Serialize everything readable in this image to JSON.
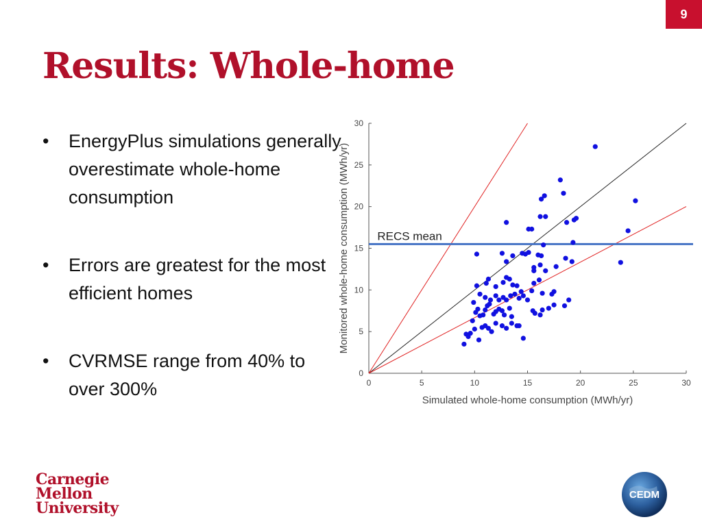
{
  "slide": {
    "number": "9",
    "title": "Results: Whole-home"
  },
  "bullets": [
    "EnergyPlus simulations generally overestimate whole-home consumption",
    "Errors are greatest for the most  efficient homes",
    "CVRMSE range from 40% to over 300%"
  ],
  "chart_data": {
    "type": "scatter",
    "xlabel": "Simulated whole-home consumption (MWh/yr)",
    "ylabel": "Monitored whole-home consumption (MWh/yr)",
    "xlim": [
      0,
      30
    ],
    "ylim": [
      0,
      30
    ],
    "xticks": [
      0,
      5,
      10,
      15,
      20,
      25,
      30
    ],
    "yticks": [
      0,
      5,
      10,
      15,
      20,
      25,
      30
    ],
    "grid": false,
    "reference_lines": [
      {
        "slope": 1,
        "color": "#222222"
      },
      {
        "slope": 2,
        "color": "#e02020"
      },
      {
        "slope": 0.667,
        "color": "#e02020"
      }
    ],
    "annotation": {
      "label": "RECS mean",
      "y": 15.5,
      "color": "#4472c4"
    },
    "point_color": "#1010e0",
    "points": [
      [
        9.0,
        3.5
      ],
      [
        9.2,
        4.7
      ],
      [
        9.4,
        4.4
      ],
      [
        9.6,
        4.8
      ],
      [
        10.0,
        5.3
      ],
      [
        10.4,
        4.0
      ],
      [
        10.7,
        5.5
      ],
      [
        11.0,
        5.7
      ],
      [
        11.3,
        5.4
      ],
      [
        11.6,
        5.0
      ],
      [
        12.0,
        6.0
      ],
      [
        12.6,
        5.7
      ],
      [
        13.0,
        5.4
      ],
      [
        13.5,
        6.0
      ],
      [
        14.0,
        5.7
      ],
      [
        14.2,
        5.7
      ],
      [
        14.6,
        4.2
      ],
      [
        9.8,
        6.3
      ],
      [
        10.1,
        7.3
      ],
      [
        10.3,
        7.7
      ],
      [
        10.5,
        6.9
      ],
      [
        10.8,
        7.0
      ],
      [
        11.0,
        7.6
      ],
      [
        11.2,
        8.1
      ],
      [
        11.4,
        8.3
      ],
      [
        11.8,
        7.1
      ],
      [
        12.0,
        7.4
      ],
      [
        12.3,
        7.7
      ],
      [
        12.6,
        7.5
      ],
      [
        12.8,
        7.0
      ],
      [
        13.3,
        7.8
      ],
      [
        13.5,
        6.8
      ],
      [
        9.9,
        8.5
      ],
      [
        10.5,
        9.5
      ],
      [
        11.0,
        9.1
      ],
      [
        11.5,
        8.8
      ],
      [
        12.0,
        9.3
      ],
      [
        12.3,
        8.8
      ],
      [
        12.7,
        9.1
      ],
      [
        13.0,
        8.8
      ],
      [
        13.4,
        9.3
      ],
      [
        13.8,
        9.5
      ],
      [
        14.2,
        9.0
      ],
      [
        14.6,
        9.3
      ],
      [
        15.0,
        8.8
      ],
      [
        15.5,
        7.5
      ],
      [
        15.7,
        7.2
      ],
      [
        16.2,
        7.0
      ],
      [
        16.4,
        7.6
      ],
      [
        17.0,
        7.8
      ],
      [
        17.5,
        8.2
      ],
      [
        18.5,
        8.1
      ],
      [
        18.9,
        8.8
      ],
      [
        10.2,
        10.5
      ],
      [
        11.1,
        10.8
      ],
      [
        11.3,
        11.3
      ],
      [
        12.0,
        10.4
      ],
      [
        12.7,
        10.9
      ],
      [
        13.0,
        11.5
      ],
      [
        13.3,
        11.3
      ],
      [
        13.6,
        10.6
      ],
      [
        14.0,
        10.5
      ],
      [
        14.4,
        9.8
      ],
      [
        15.4,
        9.9
      ],
      [
        15.6,
        10.8
      ],
      [
        16.4,
        9.6
      ],
      [
        17.3,
        9.5
      ],
      [
        17.5,
        9.8
      ],
      [
        16.1,
        11.2
      ],
      [
        16.7,
        12.3
      ],
      [
        15.6,
        12.7
      ],
      [
        16.2,
        13.0
      ],
      [
        16.3,
        14.1
      ],
      [
        17.7,
        12.8
      ],
      [
        18.6,
        13.8
      ],
      [
        19.2,
        13.4
      ],
      [
        10.2,
        14.3
      ],
      [
        12.6,
        14.4
      ],
      [
        13.0,
        13.4
      ],
      [
        13.6,
        14.1
      ],
      [
        14.5,
        14.4
      ],
      [
        14.8,
        14.3
      ],
      [
        15.6,
        12.3
      ],
      [
        16.0,
        14.2
      ],
      [
        15.1,
        17.3
      ],
      [
        15.4,
        17.3
      ],
      [
        16.5,
        15.4
      ],
      [
        19.3,
        15.7
      ],
      [
        13.0,
        18.1
      ],
      [
        15.1,
        14.5
      ],
      [
        16.2,
        18.8
      ],
      [
        16.7,
        18.8
      ],
      [
        19.4,
        18.4
      ],
      [
        19.6,
        18.6
      ],
      [
        18.7,
        18.1
      ],
      [
        16.3,
        20.9
      ],
      [
        16.6,
        21.3
      ],
      [
        18.4,
        21.6
      ],
      [
        18.1,
        23.2
      ],
      [
        21.4,
        27.2
      ],
      [
        23.8,
        13.3
      ],
      [
        24.5,
        17.1
      ],
      [
        25.2,
        20.7
      ]
    ]
  },
  "logos": {
    "university": [
      "Carnegie",
      "Mellon",
      "University"
    ],
    "cedm_text": "CEDM"
  }
}
